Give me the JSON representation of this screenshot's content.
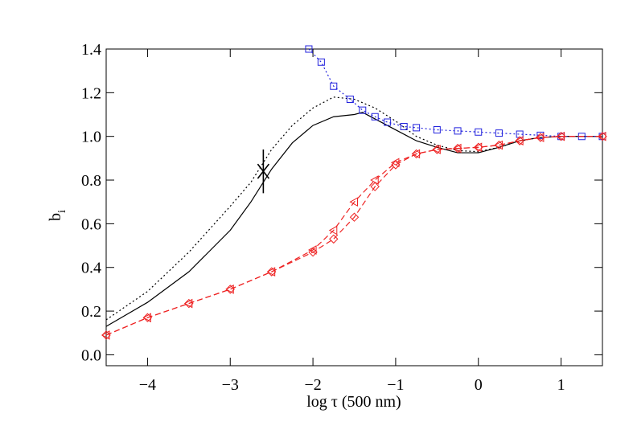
{
  "chart_data": {
    "type": "line",
    "xlabel": "log τ (500 nm)",
    "ylabel": "b",
    "ylabel_sub": "i",
    "xlim": [
      -4.5,
      1.5
    ],
    "ylim": [
      -0.05,
      1.4
    ],
    "xticks": [
      {
        "value": -4,
        "label": "−4"
      },
      {
        "value": -3,
        "label": "−3"
      },
      {
        "value": -2,
        "label": "−2"
      },
      {
        "value": -1,
        "label": "−1"
      },
      0,
      1
    ],
    "yticks": [
      {
        "value": 0,
        "label": "0.0"
      },
      {
        "value": 0.2,
        "label": "0.2"
      },
      {
        "value": 0.4,
        "label": "0.4"
      },
      {
        "value": 0.6,
        "label": "0.6"
      },
      {
        "value": 0.8,
        "label": "0.8"
      },
      {
        "value": 1,
        "label": "1.0"
      },
      {
        "value": 1.2,
        "label": "1.2"
      },
      {
        "value": 1.4,
        "label": "1.4"
      }
    ],
    "series": [
      {
        "color": "#000000",
        "dash": "solid",
        "marker": "none",
        "x": [
          -4.5,
          -4,
          -3.5,
          -3,
          -2.75,
          -2.5,
          -2.25,
          -2,
          -1.75,
          -1.5,
          -1.4,
          -1.25,
          -1,
          -0.75,
          -0.5,
          -0.25,
          0,
          0.25,
          0.5,
          0.75,
          1,
          1.5
        ],
        "values": [
          0.13,
          0.24,
          0.38,
          0.57,
          0.7,
          0.85,
          0.97,
          1.05,
          1.09,
          1.1,
          1.11,
          1.08,
          1.03,
          0.98,
          0.95,
          0.925,
          0.925,
          0.95,
          0.98,
          0.995,
          1.0,
          1.0
        ]
      },
      {
        "color": "#000000",
        "dash": "dotted",
        "marker": "none",
        "x": [
          -4.5,
          -4,
          -3.5,
          -3,
          -2.75,
          -2.5,
          -2.25,
          -2,
          -1.75,
          -1.5,
          -1.25,
          -1,
          -0.75,
          -0.5,
          -0.25,
          0,
          0.25,
          0.5,
          0.75,
          1,
          1.5
        ],
        "values": [
          0.16,
          0.29,
          0.47,
          0.68,
          0.79,
          0.94,
          1.05,
          1.13,
          1.18,
          1.17,
          1.13,
          1.07,
          1.0,
          0.96,
          0.935,
          0.93,
          0.95,
          0.98,
          0.995,
          1.0,
          1.0
        ]
      },
      {
        "color": "#2222dd",
        "dash": "dotted",
        "marker": "square",
        "x": [
          -2.05,
          -1.9,
          -1.75,
          -1.55,
          -1.4,
          -1.25,
          -1.1,
          -0.9,
          -0.75,
          -0.5,
          -0.25,
          0,
          0.25,
          0.5,
          0.75,
          1,
          1.25,
          1.5
        ],
        "values": [
          1.4,
          1.34,
          1.23,
          1.17,
          1.12,
          1.09,
          1.065,
          1.045,
          1.04,
          1.03,
          1.025,
          1.02,
          1.015,
          1.01,
          1.005,
          1.0,
          1.0,
          1.0
        ]
      },
      {
        "color": "#ee2222",
        "dash": "dashed",
        "marker": "triangle",
        "x": [
          -4.5,
          -4,
          -3.5,
          -3,
          -2.5,
          -2,
          -1.75,
          -1.5,
          -1.25,
          -1,
          -0.75,
          -0.5,
          -0.25,
          0,
          0.25,
          0.5,
          0.75,
          1,
          1.5
        ],
        "values": [
          0.09,
          0.17,
          0.235,
          0.3,
          0.38,
          0.48,
          0.57,
          0.7,
          0.8,
          0.88,
          0.92,
          0.94,
          0.945,
          0.95,
          0.96,
          0.98,
          0.995,
          1.0,
          1.0
        ]
      },
      {
        "color": "#ee2222",
        "dash": "dashed",
        "marker": "diamond",
        "x": [
          -4.5,
          -4,
          -3.5,
          -3,
          -2.5,
          -2,
          -1.75,
          -1.5,
          -1.25,
          -1,
          -0.75,
          -0.5,
          -0.25,
          0,
          0.25,
          0.5,
          0.75,
          1,
          1.5
        ],
        "values": [
          0.09,
          0.17,
          0.235,
          0.3,
          0.38,
          0.47,
          0.53,
          0.63,
          0.77,
          0.87,
          0.92,
          0.94,
          0.945,
          0.95,
          0.96,
          0.98,
          0.995,
          1.0,
          1.0
        ]
      }
    ],
    "points": {
      "color": "#000000",
      "x": [
        -2.6
      ],
      "values": [
        0.84
      ],
      "errors": [
        0.1
      ]
    }
  }
}
